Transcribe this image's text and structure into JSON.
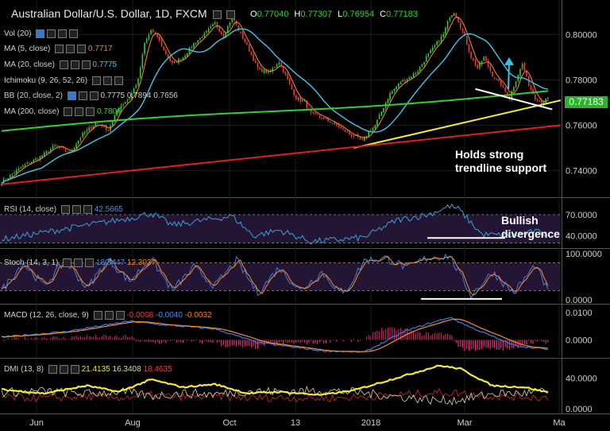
{
  "header": {
    "title": "Australian Dollar/U.S. Dollar, 1D, FXCM",
    "open_label": "O",
    "open": "0.77040",
    "high_label": "H",
    "high": "0.77307",
    "low_label": "L",
    "low": "0.76954",
    "close_label": "C",
    "close": "0.77183"
  },
  "indicators": {
    "vol": "Vol (20)",
    "ma5": "MA (5, close)",
    "ma5_value": "0.7717",
    "ma20": "MA (20, close)",
    "ma20_value": "0.7775",
    "ichimoku": "Ichimoku (9, 26, 52, 26)",
    "bb": "BB (20, close, 2)",
    "bb_v1": "0.7775",
    "bb_v2": "0.7894",
    "bb_v3": "0.7656",
    "ma200": "MA (200, close)",
    "ma200_value": "0.7806"
  },
  "annotations": {
    "support_1": "Holds strong",
    "support_2": "trendline support",
    "div_1": "Bullish",
    "div_2": "divergence"
  },
  "last_price": "0.77183",
  "colors": {
    "background": "#000000",
    "up_candle": "#3ec43e",
    "down_candle": "#ee3a3a",
    "ma5": "#ff8c1a",
    "ma20": "#39c9e8",
    "ma200": "#2fd22f",
    "trend_yellow": "#f2ee2e",
    "trend_red": "#e01e1e",
    "trend_white": "#ffffff",
    "arrow": "#27c8e8",
    "panel_bg": "#241534",
    "panel_line": "#3b9fd6"
  },
  "chart_data": [
    {
      "type": "candlestick",
      "title": "Australian Dollar/U.S. Dollar, 1D, FXCM",
      "x_ticks": [
        "Jun",
        "Aug",
        "Oct",
        "13",
        "2018",
        "Mar",
        "Ma"
      ],
      "y_ticks": [
        "0.80000",
        "0.78000",
        "0.76000",
        "0.74000"
      ],
      "ylim": [
        0.729,
        0.8145
      ],
      "close_path": [
        [
          0,
          0.735
        ],
        [
          10,
          0.742
        ],
        [
          18,
          0.746
        ],
        [
          25,
          0.751
        ],
        [
          32,
          0.748
        ],
        [
          38,
          0.756
        ],
        [
          44,
          0.761
        ],
        [
          50,
          0.758
        ],
        [
          55,
          0.768
        ],
        [
          60,
          0.772
        ],
        [
          64,
          0.78
        ],
        [
          67,
          0.796
        ],
        [
          70,
          0.802
        ],
        [
          73,
          0.799
        ],
        [
          76,
          0.793
        ],
        [
          80,
          0.787
        ],
        [
          85,
          0.79
        ],
        [
          90,
          0.796
        ],
        [
          95,
          0.8
        ],
        [
          100,
          0.805
        ],
        [
          104,
          0.799
        ],
        [
          108,
          0.808
        ],
        [
          111,
          0.802
        ],
        [
          115,
          0.795
        ],
        [
          120,
          0.785
        ],
        [
          125,
          0.783
        ],
        [
          130,
          0.788
        ],
        [
          134,
          0.78
        ],
        [
          138,
          0.772
        ],
        [
          142,
          0.77
        ],
        [
          145,
          0.765
        ],
        [
          149,
          0.764
        ],
        [
          153,
          0.762
        ],
        [
          157,
          0.76
        ],
        [
          160,
          0.758
        ],
        [
          163,
          0.756
        ],
        [
          166,
          0.755
        ],
        [
          169,
          0.753
        ],
        [
          172,
          0.757
        ],
        [
          175,
          0.76
        ],
        [
          178,
          0.766
        ],
        [
          182,
          0.774
        ],
        [
          187,
          0.779
        ],
        [
          191,
          0.781
        ],
        [
          195,
          0.784
        ],
        [
          199,
          0.79
        ],
        [
          203,
          0.795
        ],
        [
          207,
          0.8
        ],
        [
          210,
          0.808
        ],
        [
          212,
          0.81
        ],
        [
          214,
          0.806
        ],
        [
          217,
          0.799
        ],
        [
          220,
          0.79
        ],
        [
          223,
          0.785
        ],
        [
          226,
          0.79
        ],
        [
          230,
          0.782
        ],
        [
          234,
          0.778
        ],
        [
          238,
          0.772
        ],
        [
          241,
          0.78
        ],
        [
          244,
          0.787
        ],
        [
          247,
          0.778
        ],
        [
          250,
          0.772
        ],
        [
          253,
          0.77
        ],
        [
          256,
          0.7718
        ]
      ],
      "series": [
        {
          "name": "MA (5, close)",
          "color": "#ff8c1a"
        },
        {
          "name": "MA (20, close)",
          "color": "#39c9e8"
        },
        {
          "name": "MA (200, close)",
          "color": "#2fd22f"
        }
      ],
      "trendlines": [
        {
          "name": "yellow",
          "from": [
            165,
            0.75
          ],
          "to": [
            262,
            0.771
          ]
        },
        {
          "name": "red",
          "from": [
            0,
            0.734
          ],
          "to": [
            262,
            0.76
          ]
        },
        {
          "name": "white",
          "from": [
            222,
            0.776
          ],
          "to": [
            258,
            0.767
          ]
        }
      ]
    },
    {
      "type": "line",
      "title": "RSI (14, close)",
      "value": "42.5665",
      "y_ticks": [
        "70.0000",
        "40.0000"
      ],
      "ylim": [
        25,
        90
      ],
      "bands": [
        70,
        30
      ],
      "path": [
        [
          0,
          35
        ],
        [
          20,
          45
        ],
        [
          40,
          55
        ],
        [
          60,
          65
        ],
        [
          70,
          72
        ],
        [
          80,
          55
        ],
        [
          95,
          62
        ],
        [
          108,
          68
        ],
        [
          118,
          40
        ],
        [
          130,
          48
        ],
        [
          145,
          32
        ],
        [
          160,
          35
        ],
        [
          170,
          38
        ],
        [
          185,
          62
        ],
        [
          200,
          70
        ],
        [
          210,
          82
        ],
        [
          214,
          78
        ],
        [
          225,
          42
        ],
        [
          240,
          40
        ],
        [
          250,
          46
        ],
        [
          256,
          42.5
        ]
      ]
    },
    {
      "type": "line",
      "title": "Stoch (14, 3, 1)",
      "value": "18.8447",
      "value2": "12.3037",
      "y_ticks": [
        "100.0000",
        "0.0000"
      ],
      "ylim": [
        -5,
        105
      ],
      "bands": [
        80,
        20
      ],
      "path": [
        [
          0,
          20
        ],
        [
          10,
          80
        ],
        [
          20,
          30
        ],
        [
          30,
          85
        ],
        [
          40,
          25
        ],
        [
          50,
          88
        ],
        [
          60,
          40
        ],
        [
          70,
          90
        ],
        [
          80,
          20
        ],
        [
          90,
          70
        ],
        [
          100,
          30
        ],
        [
          110,
          85
        ],
        [
          120,
          15
        ],
        [
          130,
          70
        ],
        [
          140,
          20
        ],
        [
          150,
          60
        ],
        [
          160,
          10
        ],
        [
          170,
          85
        ],
        [
          180,
          90
        ],
        [
          190,
          70
        ],
        [
          200,
          92
        ],
        [
          210,
          95
        ],
        [
          220,
          10
        ],
        [
          230,
          60
        ],
        [
          240,
          15
        ],
        [
          250,
          75
        ],
        [
          256,
          18.8
        ]
      ]
    },
    {
      "type": "line",
      "title": "MACD (12, 26, close, 9)",
      "value": "-0.0008",
      "value2": "-0.0040",
      "value3": "-0.0032",
      "y_ticks": [
        "0.0100",
        "0.0000"
      ],
      "ylim": [
        -0.006,
        0.012
      ],
      "path": [
        [
          0,
          0.001
        ],
        [
          30,
          0.003
        ],
        [
          60,
          0.0068
        ],
        [
          75,
          0.0055
        ],
        [
          100,
          0.004
        ],
        [
          120,
          -0.001
        ],
        [
          150,
          -0.004
        ],
        [
          170,
          -0.0045
        ],
        [
          190,
          0.0035
        ],
        [
          210,
          0.0082
        ],
        [
          220,
          0.0045
        ],
        [
          240,
          -0.002
        ],
        [
          256,
          -0.0035
        ]
      ]
    },
    {
      "type": "line",
      "title": "DMI (13, 8)",
      "value": "21.4135",
      "value2": "16.3408",
      "value3": "18.4635",
      "y_ticks": [
        "40.0000",
        "0.0000"
      ],
      "ylim": [
        -4,
        62
      ],
      "path": [
        [
          0,
          25
        ],
        [
          20,
          20
        ],
        [
          40,
          30
        ],
        [
          55,
          22
        ],
        [
          70,
          38
        ],
        [
          85,
          28
        ],
        [
          100,
          32
        ],
        [
          115,
          20
        ],
        [
          130,
          22
        ],
        [
          150,
          18
        ],
        [
          165,
          24
        ],
        [
          185,
          40
        ],
        [
          205,
          56
        ],
        [
          215,
          52
        ],
        [
          230,
          30
        ],
        [
          245,
          28
        ],
        [
          256,
          21.4
        ]
      ]
    }
  ]
}
